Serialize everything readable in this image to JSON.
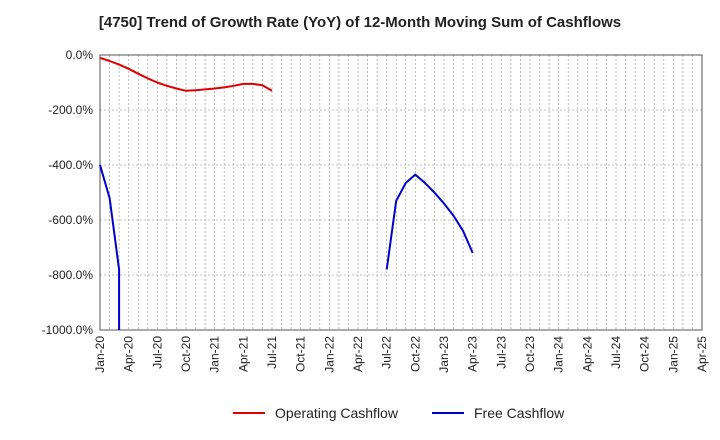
{
  "chart_data": {
    "type": "line",
    "title": "[4750]  Trend of Growth Rate (YoY) of 12-Month Moving Sum of Cashflows",
    "xlabel": "",
    "ylabel": "",
    "x_tick_labels": [
      "Jan-20",
      "Apr-20",
      "Jul-20",
      "Oct-20",
      "Jan-21",
      "Apr-21",
      "Jul-21",
      "Oct-21",
      "Jan-22",
      "Apr-22",
      "Jul-22",
      "Oct-22",
      "Jan-23",
      "Apr-23",
      "Jul-23",
      "Oct-23",
      "Jan-24",
      "Apr-24",
      "Jul-24",
      "Oct-24",
      "Jan-25",
      "Apr-25"
    ],
    "y_tick_labels": [
      "0.0%",
      "-200.0%",
      "-400.0%",
      "-600.0%",
      "-800.0%",
      "-1000.0%"
    ],
    "ylim": [
      -1000,
      0
    ],
    "grid": true,
    "legend_position": "bottom",
    "series": [
      {
        "name": "Operating Cashflow",
        "color": "#e00000",
        "points": [
          [
            "Jan-20",
            -10
          ],
          [
            "Feb-20",
            -22
          ],
          [
            "Mar-20",
            -35
          ],
          [
            "Apr-20",
            -50
          ],
          [
            "May-20",
            -68
          ],
          [
            "Jun-20",
            -85
          ],
          [
            "Jul-20",
            -100
          ],
          [
            "Aug-20",
            -112
          ],
          [
            "Sep-20",
            -122
          ],
          [
            "Oct-20",
            -130
          ],
          [
            "Nov-20",
            -128
          ],
          [
            "Dec-20",
            -125
          ],
          [
            "Jan-21",
            -122
          ],
          [
            "Feb-21",
            -118
          ],
          [
            "Mar-21",
            -112
          ],
          [
            "Apr-21",
            -105
          ],
          [
            "May-21",
            -105
          ],
          [
            "Jun-21",
            -110
          ],
          [
            "Jul-21",
            -130
          ]
        ]
      },
      {
        "name": "Free Cashflow",
        "color": "#0000cc",
        "segments": [
          [
            [
              "Jan-20",
              -400
            ],
            [
              "Feb-20",
              -520
            ],
            [
              "Mar-20",
              -780
            ],
            [
              "Mar-20",
              -1000
            ]
          ],
          [
            [
              "Jul-22",
              -780
            ],
            [
              "Aug-22",
              -530
            ],
            [
              "Sep-22",
              -465
            ],
            [
              "Oct-22",
              -435
            ],
            [
              "Nov-22",
              -465
            ],
            [
              "Dec-22",
              -500
            ],
            [
              "Jan-23",
              -540
            ],
            [
              "Feb-23",
              -585
            ],
            [
              "Mar-23",
              -640
            ],
            [
              "Apr-23",
              -720
            ]
          ]
        ]
      }
    ]
  }
}
